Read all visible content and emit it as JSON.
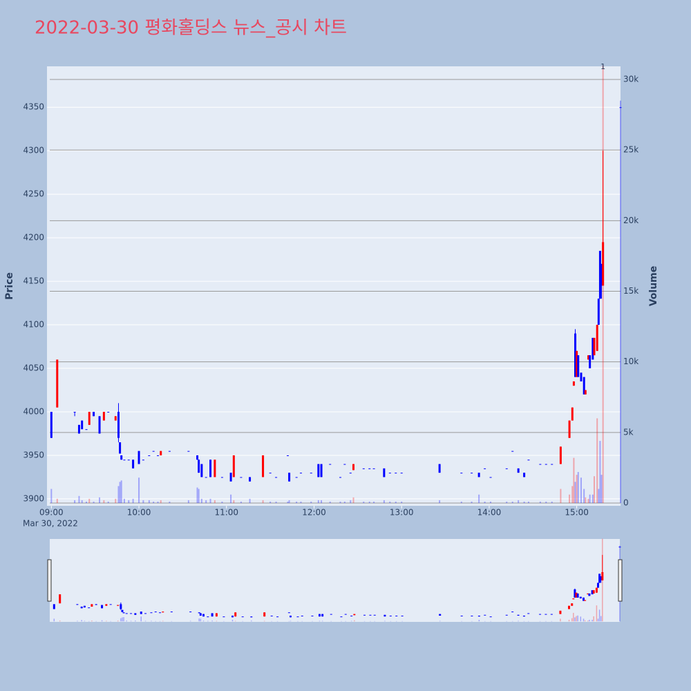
{
  "chart_data": {
    "type": "candlestick",
    "title": "2022-03-30 평화홀딩스 뉴스_공시 차트",
    "y_label": "Price",
    "y2_label": "Volume",
    "x_date_label": "Mar 30, 2022",
    "increasing_color": "#ff0000",
    "decreasing_color": "#0000ff",
    "xlim": [
      "08:57",
      "15:30"
    ],
    "xticks": [
      "09:00",
      "10:00",
      "11:00",
      "12:00",
      "13:00",
      "14:00",
      "15:00"
    ],
    "ylim": [
      3892,
      4397
    ],
    "yticks": [
      3900,
      3950,
      4000,
      4050,
      4100,
      4150,
      4200,
      4250,
      4300,
      4350
    ],
    "y2lim": [
      -196,
      30930
    ],
    "y2ticks": [
      0,
      {
        "value": 5000,
        "label": "5k"
      },
      {
        "value": 10000,
        "label": "10k"
      },
      {
        "value": 15000,
        "label": "15k"
      },
      {
        "value": 20000,
        "label": "20k"
      },
      {
        "value": 25000,
        "label": "25k"
      },
      {
        "value": 30000,
        "label": "30k"
      }
    ],
    "annotations": [
      {
        "x": "15:18",
        "text": "1"
      }
    ],
    "x": [
      "09:00",
      "09:04",
      "09:16",
      "09:19",
      "09:21",
      "09:24",
      "09:26",
      "09:29",
      "09:33",
      "09:36",
      "09:39",
      "09:44",
      "09:46",
      "09:47",
      "09:48",
      "09:50",
      "09:53",
      "09:56",
      "10:00",
      "10:03",
      "10:07",
      "10:10",
      "10:13",
      "10:15",
      "10:21",
      "10:34",
      "10:40",
      "10:41",
      "10:43",
      "10:46",
      "10:49",
      "10:52",
      "10:57",
      "11:03",
      "11:05",
      "11:10",
      "11:16",
      "11:25",
      "11:30",
      "11:34",
      "11:42",
      "11:43",
      "11:48",
      "11:51",
      "11:58",
      "12:03",
      "12:05",
      "12:11",
      "12:18",
      "12:21",
      "12:25",
      "12:27",
      "12:34",
      "12:38",
      "12:41",
      "12:48",
      "12:52",
      "12:56",
      "13:00",
      "13:26",
      "13:41",
      "13:48",
      "13:53",
      "13:57",
      "14:01",
      "14:12",
      "14:16",
      "14:20",
      "14:24",
      "14:27",
      "14:35",
      "14:39",
      "14:43",
      "14:49",
      "14:55",
      "14:57",
      "14:58",
      "14:59",
      "15:00",
      "15:01",
      "15:03",
      "15:05",
      "15:06",
      "15:08",
      "15:09",
      "15:11",
      "15:12",
      "15:14",
      "15:15",
      "15:16",
      "15:17",
      "15:18",
      "15:30"
    ],
    "open": [
      4000,
      4005,
      4000,
      3985,
      3990,
      3980,
      3985,
      4000,
      3995,
      3990,
      4000,
      3990,
      4000,
      3965,
      3950,
      3945,
      3945,
      3945,
      3955,
      3945,
      3950,
      3955,
      3950,
      3950,
      3955,
      3955,
      3950,
      3945,
      3940,
      3925,
      3945,
      3925,
      3925,
      3930,
      3925,
      3925,
      3925,
      3925,
      3930,
      3925,
      3950,
      3930,
      3925,
      3930,
      3930,
      3940,
      3940,
      3940,
      3925,
      3940,
      3930,
      3933,
      3935,
      3935,
      3935,
      3935,
      3930,
      3930,
      3930,
      3940,
      3930,
      3930,
      3930,
      3935,
      3925,
      3935,
      3955,
      3935,
      3930,
      3945,
      3940,
      3940,
      3940,
      3940,
      3970,
      3990,
      4030,
      4090,
      4040,
      4065,
      4045,
      4040,
      4020,
      4060,
      4065,
      4085,
      4065,
      4070,
      4130,
      4185,
      4170,
      4145,
      4350
    ],
    "high": [
      4000,
      4060,
      4000,
      3985,
      3990,
      3980,
      4000,
      4000,
      3995,
      4000,
      4000,
      3995,
      4010,
      3965,
      3950,
      3945,
      3945,
      3945,
      3955,
      3945,
      3950,
      3955,
      3950,
      3955,
      3955,
      3955,
      3950,
      3945,
      3940,
      3925,
      3945,
      3945,
      3925,
      3930,
      3950,
      3925,
      3925,
      3950,
      3930,
      3925,
      3950,
      3930,
      3925,
      3930,
      3930,
      3940,
      3940,
      3940,
      3925,
      3940,
      3930,
      3940,
      3935,
      3935,
      3935,
      3935,
      3930,
      3930,
      3930,
      3940,
      3930,
      3930,
      3930,
      3935,
      3925,
      3935,
      3955,
      3935,
      3930,
      3945,
      3940,
      3940,
      3940,
      3960,
      3990,
      4005,
      4035,
      4095,
      4070,
      4065,
      4045,
      4040,
      4025,
      4065,
      4065,
      4085,
      4085,
      4100,
      4130,
      4185,
      4170,
      4300,
      4350
    ],
    "low": [
      3970,
      4005,
      3995,
      3975,
      3980,
      3980,
      3985,
      3995,
      3975,
      3990,
      4000,
      3990,
      3965,
      3952,
      3945,
      3945,
      3945,
      3935,
      3940,
      3945,
      3950,
      3955,
      3950,
      3950,
      3955,
      3955,
      3945,
      3930,
      3925,
      3925,
      3925,
      3925,
      3925,
      3920,
      3925,
      3925,
      3920,
      3925,
      3930,
      3925,
      3950,
      3920,
      3925,
      3930,
      3930,
      3925,
      3925,
      3940,
      3925,
      3940,
      3930,
      3933,
      3935,
      3935,
      3935,
      3925,
      3930,
      3930,
      3930,
      3930,
      3930,
      3930,
      3925,
      3935,
      3925,
      3935,
      3955,
      3930,
      3925,
      3945,
      3940,
      3940,
      3940,
      3940,
      3970,
      3990,
      4030,
      4040,
      4040,
      4040,
      4035,
      4020,
      4020,
      4060,
      4050,
      4060,
      4065,
      4070,
      4100,
      4130,
      4130,
      4145,
      4350
    ],
    "close": [
      3970,
      4060,
      4000,
      3975,
      3980,
      3980,
      4000,
      3995,
      3975,
      4000,
      4000,
      3995,
      3970,
      3952,
      3945,
      3945,
      3945,
      3935,
      3940,
      3945,
      3950,
      3955,
      3950,
      3955,
      3955,
      3955,
      3945,
      3930,
      3925,
      3925,
      3925,
      3945,
      3925,
      3920,
      3950,
      3925,
      3920,
      3950,
      3930,
      3925,
      3950,
      3920,
      3925,
      3930,
      3930,
      3925,
      3925,
      3940,
      3925,
      3940,
      3930,
      3940,
      3935,
      3935,
      3935,
      3925,
      3930,
      3930,
      3930,
      3930,
      3930,
      3930,
      3925,
      3935,
      3925,
      3935,
      3955,
      3930,
      3925,
      3945,
      3940,
      3940,
      3940,
      3960,
      3990,
      4005,
      4035,
      4040,
      4070,
      4040,
      4035,
      4020,
      4025,
      4065,
      4050,
      4060,
      4085,
      4100,
      4100,
      4130,
      4145,
      4195,
      4350
    ],
    "volume": [
      1000,
      300,
      200,
      500,
      200,
      100,
      300,
      100,
      400,
      200,
      100,
      300,
      1200,
      1500,
      1600,
      300,
      200,
      300,
      1800,
      200,
      200,
      100,
      100,
      200,
      100,
      200,
      1100,
      1000,
      300,
      200,
      300,
      200,
      100,
      600,
      200,
      100,
      300,
      200,
      100,
      100,
      100,
      200,
      100,
      100,
      100,
      200,
      200,
      100,
      100,
      100,
      200,
      400,
      100,
      100,
      100,
      200,
      100,
      100,
      100,
      200,
      100,
      100,
      600,
      100,
      100,
      100,
      100,
      200,
      100,
      100,
      100,
      100,
      100,
      1000,
      600,
      1200,
      3200,
      1500,
      2000,
      2200,
      1800,
      1000,
      400,
      300,
      600,
      600,
      1900,
      6000,
      1000,
      4400,
      2000,
      31000,
      28500
    ]
  }
}
